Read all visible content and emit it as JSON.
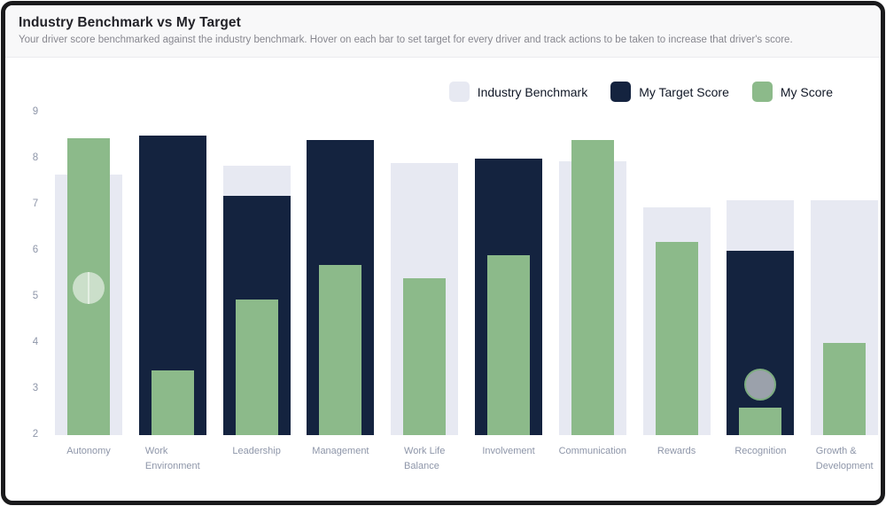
{
  "header": {
    "title": "Industry Benchmark vs My Target",
    "subtitle": "Your driver score benchmarked against the industry benchmark. Hover on each bar to set target for every driver and track actions to be taken to increase that driver's score."
  },
  "legend": [
    {
      "label": "Industry Benchmark",
      "color": "#e7e9f2"
    },
    {
      "label": "My Target Score",
      "color": "#14233f"
    },
    {
      "label": "My Score",
      "color": "#8cba8a"
    }
  ],
  "chart_data": {
    "type": "bar",
    "title": "Industry Benchmark vs My Target",
    "xlabel": "",
    "ylabel": "",
    "ylim": [
      2,
      9
    ],
    "yticks": [
      2,
      3,
      4,
      5,
      6,
      7,
      8,
      9
    ],
    "grid": false,
    "legend_position": "top-right",
    "categories": [
      "Autonomy",
      "Work\nEnvironment",
      "Leadership",
      "Management",
      "Work Life\nBalance",
      "Involvement",
      "Communication",
      "Rewards",
      "Recognition",
      "Growth &\nDevelopment"
    ],
    "series": [
      {
        "name": "Industry Benchmark",
        "key": "benchmark",
        "color": "#e7e9f2",
        "values": [
          7.65,
          null,
          7.85,
          null,
          7.9,
          null,
          7.95,
          6.95,
          7.1,
          7.1
        ]
      },
      {
        "name": "My Target Score",
        "key": "target",
        "color": "#14233f",
        "values": [
          null,
          8.5,
          7.2,
          8.4,
          null,
          8.0,
          null,
          null,
          6.0,
          null
        ]
      },
      {
        "name": "My Score",
        "key": "score",
        "color": "#8cba8a",
        "values": [
          8.45,
          3.4,
          4.95,
          5.7,
          5.4,
          5.9,
          8.4,
          6.2,
          2.6,
          4.0
        ]
      }
    ],
    "markers": [
      {
        "category_index": 0,
        "category": "Autonomy",
        "value": 5.2,
        "variant": "light-green",
        "split": true
      },
      {
        "category_index": 8,
        "category": "Recognition",
        "value": 3.1,
        "variant": "gray",
        "split": false
      }
    ]
  }
}
